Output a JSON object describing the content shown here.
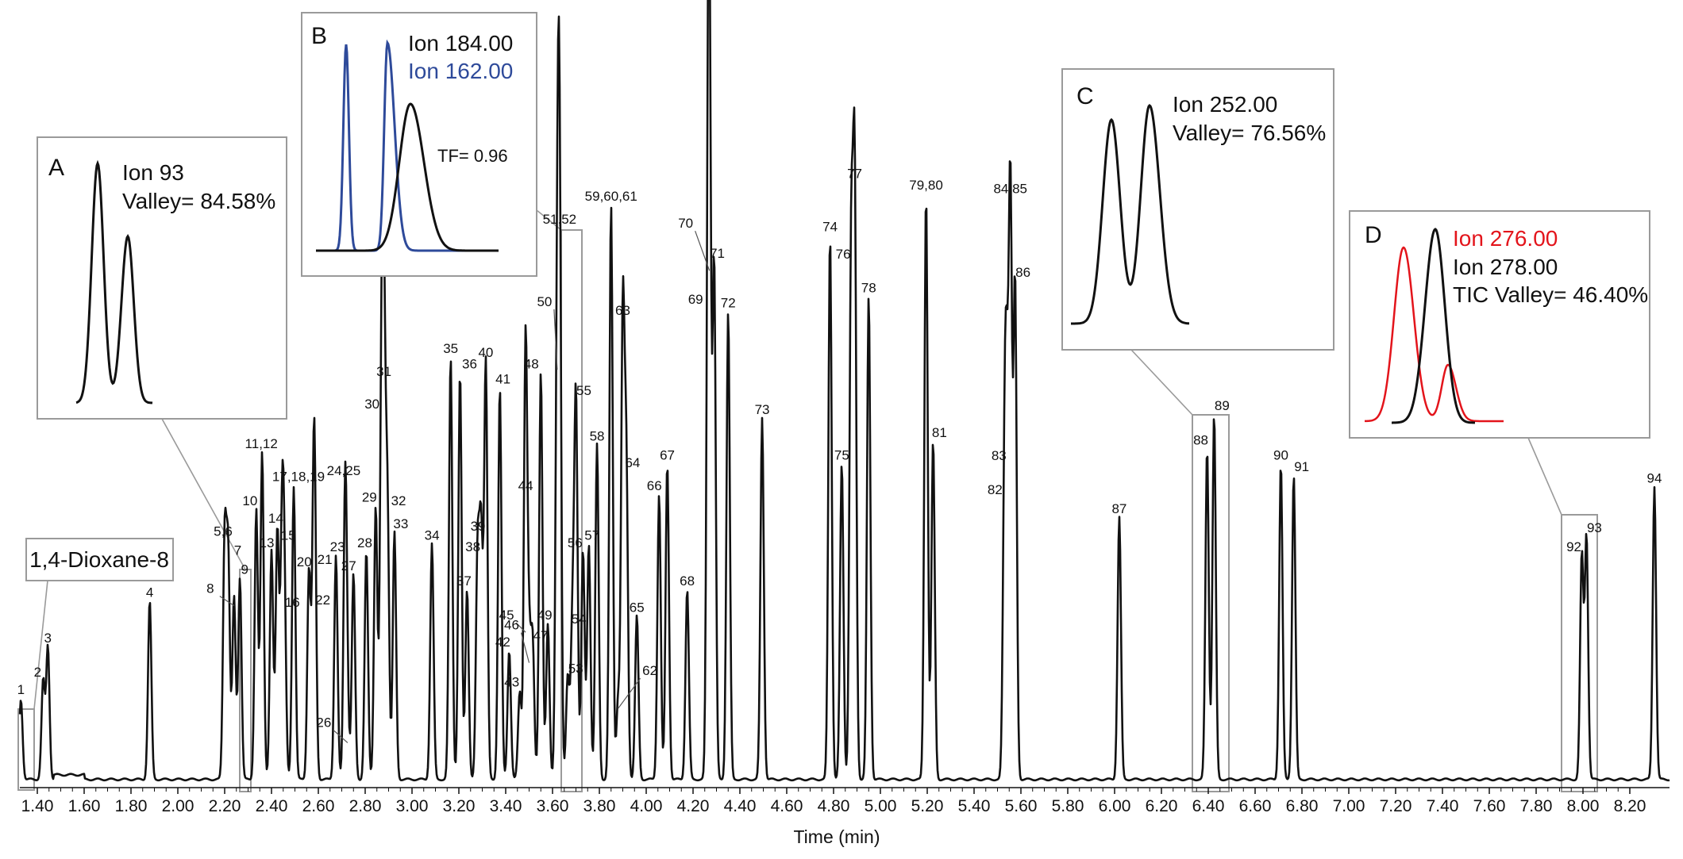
{
  "chart_data": {
    "type": "line",
    "title": "",
    "xlabel": "Time (min)",
    "ylabel": "",
    "xlim": [
      1.3,
      8.36
    ],
    "ylim": [
      0,
      100
    ],
    "x_ticks": [
      "1.40",
      "1.60",
      "1.80",
      "2.00",
      "2.20",
      "2.40",
      "2.60",
      "2.80",
      "3.00",
      "3.20",
      "3.40",
      "3.60",
      "3.80",
      "4.00",
      "4.20",
      "4.40",
      "4.60",
      "4.80",
      "5.00",
      "5.20",
      "5.40",
      "5.60",
      "5.80",
      "6.00",
      "6.20",
      "6.40",
      "6.60",
      "6.80",
      "7.00",
      "7.20",
      "7.40",
      "7.60",
      "7.80",
      "8.00",
      "8.20"
    ],
    "series": [
      {
        "peaks": [
          {
            "label": "1",
            "t": 1.33,
            "h": 10.5
          },
          {
            "label": "2",
            "t": 1.425,
            "h": 13.0
          },
          {
            "label": "3",
            "t": 1.445,
            "h": 17.5
          },
          {
            "label": "4",
            "t": 1.88,
            "h": 23.5
          },
          {
            "label": "5,6",
            "t": 2.2,
            "h": 31.5
          },
          {
            "label": "7",
            "t": 2.215,
            "h": 29.0
          },
          {
            "label": "8",
            "t": 2.24,
            "h": 24.0
          },
          {
            "label": "9",
            "t": 2.265,
            "h": 26.5
          },
          {
            "label": "10",
            "t": 2.335,
            "h": 35.5
          },
          {
            "label": "11,12",
            "t": 2.36,
            "h": 43.0
          },
          {
            "label": "13",
            "t": 2.4,
            "h": 30.0
          },
          {
            "label": "14",
            "t": 2.425,
            "h": 33.0
          },
          {
            "label": "15",
            "t": 2.445,
            "h": 31.0
          },
          {
            "label": "16",
            "t": 2.455,
            "h": 22.0
          },
          {
            "label": "17,18,19",
            "t": 2.495,
            "h": 38.5
          },
          {
            "label": "20",
            "t": 2.56,
            "h": 27.5
          },
          {
            "label": "21",
            "t": 2.58,
            "h": 28.0
          },
          {
            "label": "22",
            "t": 2.585,
            "h": 22.5
          },
          {
            "label": "23",
            "t": 2.675,
            "h": 29.5
          },
          {
            "label": "24,25",
            "t": 2.715,
            "h": 39.5
          },
          {
            "label": "26",
            "t": 2.725,
            "h": 6.0
          },
          {
            "label": "27",
            "t": 2.75,
            "h": 27.0
          },
          {
            "label": "28",
            "t": 2.805,
            "h": 30.0
          },
          {
            "label": "29",
            "t": 2.845,
            "h": 36.0
          },
          {
            "label": "30",
            "t": 2.87,
            "h": 48.0
          },
          {
            "label": "31",
            "t": 2.88,
            "h": 52.5
          },
          {
            "label": "32",
            "t": 2.895,
            "h": 35.5
          },
          {
            "label": "33",
            "t": 2.925,
            "h": 32.5
          },
          {
            "label": "34",
            "t": 3.085,
            "h": 31.0
          },
          {
            "label": "35",
            "t": 3.165,
            "h": 55.5
          },
          {
            "label": "36",
            "t": 3.205,
            "h": 53.5
          },
          {
            "label": "37",
            "t": 3.235,
            "h": 25.0
          },
          {
            "label": "38",
            "t": 3.28,
            "h": 29.5
          },
          {
            "label": "39",
            "t": 3.295,
            "h": 32.0
          },
          {
            "label": "40",
            "t": 3.315,
            "h": 55.0
          },
          {
            "label": "41",
            "t": 3.375,
            "h": 51.5
          },
          {
            "label": "42",
            "t": 3.415,
            "h": 17.0
          },
          {
            "label": "43",
            "t": 3.46,
            "h": 11.5
          },
          {
            "label": "44",
            "t": 3.485,
            "h": 37.5
          },
          {
            "label": "45",
            "t": 3.485,
            "h": 20.5
          },
          {
            "label": "46",
            "t": 3.5,
            "h": 16.5
          },
          {
            "label": "47",
            "t": 3.515,
            "h": 18.0
          },
          {
            "label": "48",
            "t": 3.55,
            "h": 53.5
          },
          {
            "label": "49",
            "t": 3.58,
            "h": 20.5
          },
          {
            "label": "50",
            "t": 3.62,
            "h": 55.0
          },
          {
            "label": "51,52",
            "t": 3.63,
            "h": 72.5
          },
          {
            "label": "53",
            "t": 3.665,
            "h": 13.5
          },
          {
            "label": "54",
            "t": 3.685,
            "h": 20.0
          },
          {
            "label": "55",
            "t": 3.7,
            "h": 50.0
          },
          {
            "label": "56",
            "t": 3.73,
            "h": 30.0
          },
          {
            "label": "57",
            "t": 3.755,
            "h": 31.0
          },
          {
            "label": "58",
            "t": 3.79,
            "h": 44.0
          },
          {
            "label": "59,60,61",
            "t": 3.85,
            "h": 75.5
          },
          {
            "label": "62",
            "t": 3.88,
            "h": 10.5
          },
          {
            "label": "63",
            "t": 3.9,
            "h": 60.5
          },
          {
            "label": "64",
            "t": 3.915,
            "h": 40.5
          },
          {
            "label": "65",
            "t": 3.96,
            "h": 21.5
          },
          {
            "label": "66",
            "t": 4.055,
            "h": 37.5
          },
          {
            "label": "67",
            "t": 4.09,
            "h": 41.5
          },
          {
            "label": "68",
            "t": 4.175,
            "h": 25.0
          },
          {
            "label": "69",
            "t": 4.265,
            "h": 62.0
          },
          {
            "label": "70",
            "t": 4.27,
            "h": 68.0
          },
          {
            "label": "71",
            "t": 4.29,
            "h": 68.0
          },
          {
            "label": "72",
            "t": 4.35,
            "h": 61.5
          },
          {
            "label": "73",
            "t": 4.495,
            "h": 47.5
          },
          {
            "label": "74",
            "t": 4.785,
            "h": 71.5
          },
          {
            "label": "75",
            "t": 4.835,
            "h": 41.5
          },
          {
            "label": "76",
            "t": 4.875,
            "h": 67.5
          },
          {
            "label": "77",
            "t": 4.89,
            "h": 78.5
          },
          {
            "label": "78",
            "t": 4.95,
            "h": 63.5
          },
          {
            "label": "79,80",
            "t": 5.195,
            "h": 77.0
          },
          {
            "label": "81",
            "t": 5.225,
            "h": 44.5
          },
          {
            "label": "82",
            "t": 5.53,
            "h": 37.0
          },
          {
            "label": "83",
            "t": 5.54,
            "h": 40.0
          },
          {
            "label": "84,85",
            "t": 5.555,
            "h": 76.5
          },
          {
            "label": "86",
            "t": 5.575,
            "h": 65.5
          },
          {
            "label": "87",
            "t": 6.02,
            "h": 34.5
          },
          {
            "label": "88",
            "t": 6.395,
            "h": 43.5
          },
          {
            "label": "89",
            "t": 6.425,
            "h": 48.0
          },
          {
            "label": "90",
            "t": 6.71,
            "h": 41.5
          },
          {
            "label": "91",
            "t": 6.765,
            "h": 40.0
          },
          {
            "label": "92",
            "t": 7.995,
            "h": 29.5
          },
          {
            "label": "93",
            "t": 8.015,
            "h": 32.0
          },
          {
            "label": "94",
            "t": 8.305,
            "h": 38.5
          }
        ]
      }
    ],
    "highlight_labels": {
      "dioxane": "1,4-Dioxane-8"
    },
    "insets": [
      {
        "letter": "A",
        "lines": [
          {
            "text": "Ion 93",
            "color": "#111111"
          },
          {
            "text": "Valley= 84.58%",
            "color": "#111111"
          }
        ]
      },
      {
        "letter": "B",
        "lines": [
          {
            "text": "Ion 184.00",
            "color": "#111111"
          },
          {
            "text": "Ion 162.00",
            "color": "#2e4a9a"
          }
        ],
        "note": "TF= 0.96"
      },
      {
        "letter": "C",
        "lines": [
          {
            "text": "Ion 252.00",
            "color": "#111111"
          },
          {
            "text": "Valley= 76.56%",
            "color": "#111111"
          }
        ]
      },
      {
        "letter": "D",
        "lines": [
          {
            "text": "Ion 276.00",
            "color": "#e3141b"
          },
          {
            "text": "Ion 278.00",
            "color": "#111111"
          },
          {
            "text": "TIC Valley= 46.40%",
            "color": "#111111"
          }
        ]
      }
    ],
    "grid": false,
    "legend": "none"
  }
}
